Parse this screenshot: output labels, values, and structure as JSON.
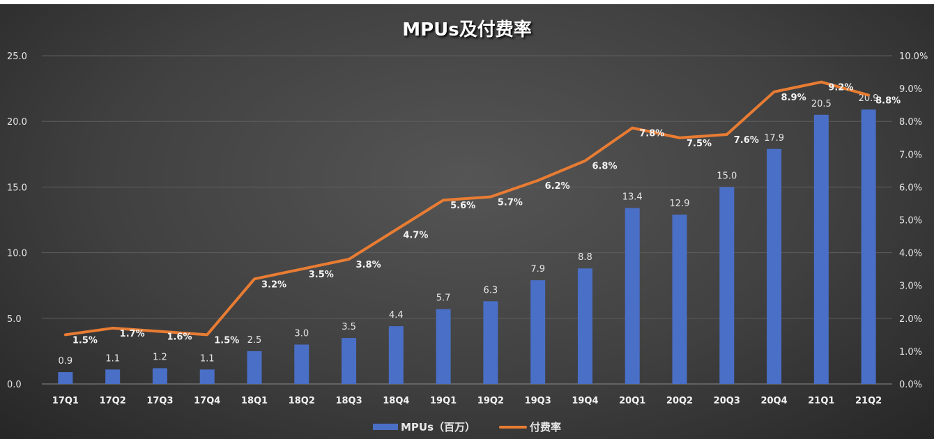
{
  "chart_data": {
    "type": "bar+line",
    "title": "MPUs及付费率",
    "categories": [
      "17Q1",
      "17Q2",
      "17Q3",
      "17Q4",
      "18Q1",
      "18Q2",
      "18Q3",
      "18Q4",
      "19Q1",
      "19Q2",
      "19Q3",
      "19Q4",
      "20Q1",
      "20Q2",
      "20Q3",
      "20Q4",
      "21Q1",
      "21Q2"
    ],
    "series": [
      {
        "name": "MPUs（百万）",
        "type": "bar",
        "axis": "left",
        "color": "#4a6fc7",
        "values": [
          0.9,
          1.1,
          1.2,
          1.1,
          2.5,
          3.0,
          3.5,
          4.4,
          5.7,
          6.3,
          7.9,
          8.8,
          13.4,
          12.9,
          15.0,
          17.9,
          20.5,
          20.9
        ],
        "labels": [
          "0.9",
          "1.1",
          "1.2",
          "1.1",
          "2.5",
          "3.0",
          "3.5",
          "4.4",
          "5.7",
          "6.3",
          "7.9",
          "8.8",
          "13.4",
          "12.9",
          "15.0",
          "17.9",
          "20.5",
          "20.9"
        ]
      },
      {
        "name": "付费率",
        "type": "line",
        "axis": "right",
        "color": "#e87c33",
        "values": [
          1.5,
          1.7,
          1.6,
          1.5,
          3.2,
          3.5,
          3.8,
          4.7,
          5.6,
          5.7,
          6.2,
          6.8,
          7.8,
          7.5,
          7.6,
          8.9,
          9.2,
          8.8
        ],
        "labels": [
          "1.5%",
          "1.7%",
          "1.6%",
          "1.5%",
          "3.2%",
          "3.5%",
          "3.8%",
          "4.7%",
          "5.6%",
          "5.7%",
          "6.2%",
          "6.8%",
          "7.8%",
          "7.5%",
          "7.6%",
          "8.9%",
          "9.2%",
          "8.8%"
        ]
      }
    ],
    "y_left": {
      "lim": [
        0,
        25
      ],
      "ticks": [
        "0.0",
        "5.0",
        "10.0",
        "15.0",
        "20.0",
        "25.0"
      ]
    },
    "y_right": {
      "lim": [
        0,
        10
      ],
      "ticks": [
        "0.0%",
        "1.0%",
        "2.0%",
        "3.0%",
        "4.0%",
        "5.0%",
        "6.0%",
        "7.0%",
        "8.0%",
        "9.0%",
        "10.0%"
      ]
    },
    "grid": true,
    "legend": "bottom"
  }
}
